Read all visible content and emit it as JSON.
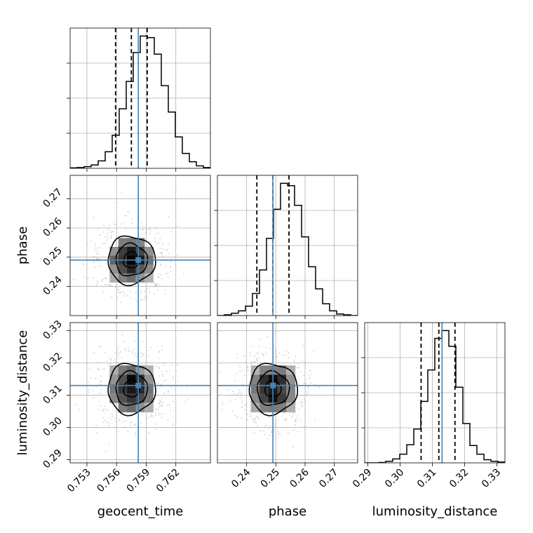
{
  "chart_data": {
    "type": "corner",
    "parameters": [
      "geocent_time",
      "phase",
      "luminosity_distance"
    ],
    "colors": {
      "truth": "#4682b4",
      "hist": "#000000",
      "grid": "#b0b0b0"
    },
    "truths": {
      "geocent_time": 0.7582,
      "phase": 0.249,
      "luminosity_distance": 0.313
    },
    "ranges": {
      "geocent_time": [
        0.7513,
        0.7655
      ],
      "phase": [
        0.23,
        0.278
      ],
      "luminosity_distance": [
        0.289,
        0.3325
      ]
    },
    "ticks": {
      "geocent_time": {
        "values": [
          0.753,
          0.756,
          0.759,
          0.762
        ],
        "labels": [
          "0.753",
          "0.756",
          "0.759",
          "0.762"
        ]
      },
      "phase": {
        "values": [
          0.24,
          0.25,
          0.26,
          0.27
        ],
        "labels": [
          "0.24",
          "0.25",
          "0.26",
          "0.27"
        ]
      },
      "luminosity_distance": {
        "values": [
          0.29,
          0.3,
          0.31,
          0.32,
          0.33
        ],
        "labels": [
          "0.29",
          "0.30",
          "0.31",
          "0.32",
          "0.33"
        ]
      }
    },
    "quantiles": {
      "geocent_time": [
        0.7559,
        0.7575,
        0.7591
      ],
      "phase": [
        0.2435,
        0.249,
        0.2545
      ],
      "luminosity_distance": [
        0.3065,
        0.312,
        0.317
      ]
    },
    "histograms": {
      "geocent_time": {
        "bin_edges_range": [
          0.7513,
          0.7655
        ],
        "counts": [
          0.5,
          1,
          2,
          4,
          9,
          20,
          40,
          72,
          105,
          140,
          160,
          158,
          138,
          100,
          68,
          38,
          18,
          8,
          3,
          1
        ]
      },
      "phase": {
        "bin_edges_range": [
          0.23,
          0.278
        ],
        "counts": [
          0,
          1,
          3,
          6,
          12,
          28,
          58,
          98,
          135,
          168,
          165,
          140,
          100,
          62,
          34,
          15,
          6,
          2,
          1,
          0
        ]
      },
      "luminosity_distance": {
        "bin_edges_range": [
          0.289,
          0.3325
        ],
        "counts": [
          0,
          0,
          0.5,
          2,
          5,
          11,
          23,
          43,
          78,
          118,
          158,
          168,
          148,
          96,
          50,
          22,
          11,
          4,
          2,
          1
        ]
      }
    },
    "contour_levels": [
      0.5,
      1.0,
      1.5
    ],
    "grid": true,
    "xlabels": [
      "geocent_time",
      "phase",
      "luminosity_distance"
    ],
    "ylabels": [
      "",
      "phase",
      "luminosity_distance"
    ]
  }
}
